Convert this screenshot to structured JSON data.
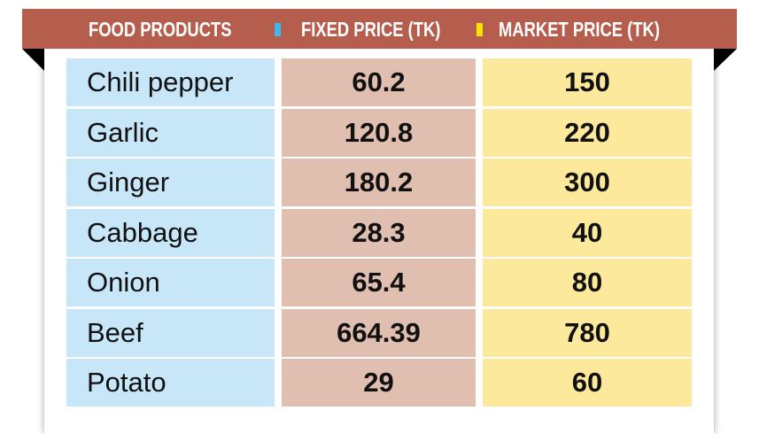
{
  "chart_data": {
    "type": "table",
    "columns": [
      "FOOD PRODUCTS",
      "FIXED PRICE (TK)",
      "MARKET PRICE (TK)"
    ],
    "legend_colors": {
      "fixed_price": "#3bb8ec",
      "market_price": "#f5e400"
    },
    "colors": {
      "banner": "#b55e4e",
      "food_column": "#c7e6f7",
      "fixed_column": "#e0bfb0",
      "market_column": "#fde99c"
    },
    "rows": [
      {
        "product": "Chili pepper",
        "fixed": "60.2",
        "market": "150"
      },
      {
        "product": "Garlic",
        "fixed": "120.8",
        "market": "220"
      },
      {
        "product": "Ginger",
        "fixed": "180.2",
        "market": "300"
      },
      {
        "product": "Cabbage",
        "fixed": "28.3",
        "market": "40"
      },
      {
        "product": "Onion",
        "fixed": "65.4",
        "market": "80"
      },
      {
        "product": "Beef",
        "fixed": "664.39",
        "market": "780"
      },
      {
        "product": "Potato",
        "fixed": "29",
        "market": "60"
      }
    ]
  }
}
